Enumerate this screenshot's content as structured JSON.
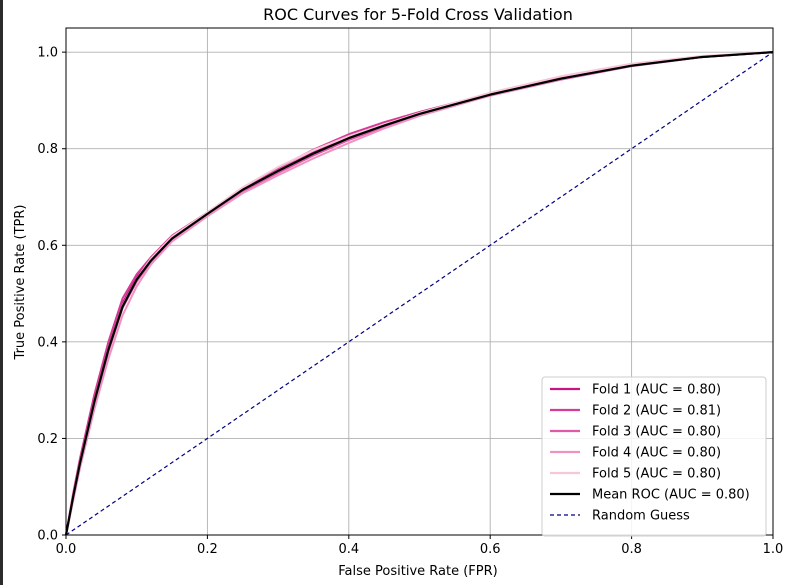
{
  "chart_data": {
    "type": "line",
    "title": "ROC Curves for 5-Fold Cross Validation",
    "xlabel": "False Positive Rate (FPR)",
    "ylabel": "True Positive Rate (TPR)",
    "xlim": [
      0.0,
      1.0
    ],
    "ylim": [
      0.0,
      1.05
    ],
    "grid": true,
    "legend_position": "bottom-right",
    "x_ticks": [
      "0.0",
      "0.2",
      "0.4",
      "0.6",
      "0.8",
      "1.0"
    ],
    "y_ticks": [
      "0.0",
      "0.2",
      "0.4",
      "0.6",
      "0.8",
      "1.0"
    ],
    "series": [
      {
        "name": "Fold 1 (AUC = 0.80)",
        "color": "#c71585",
        "x": [
          0.0,
          0.01,
          0.02,
          0.04,
          0.06,
          0.08,
          0.1,
          0.12,
          0.15,
          0.2,
          0.25,
          0.3,
          0.35,
          0.4,
          0.45,
          0.5,
          0.6,
          0.7,
          0.8,
          0.9,
          1.0
        ],
        "y": [
          0.0,
          0.08,
          0.15,
          0.28,
          0.39,
          0.48,
          0.535,
          0.57,
          0.615,
          0.665,
          0.715,
          0.755,
          0.792,
          0.823,
          0.848,
          0.872,
          0.912,
          0.945,
          0.972,
          0.99,
          1.0
        ]
      },
      {
        "name": "Fold 2 (AUC = 0.81)",
        "color": "#d63b96",
        "x": [
          0.0,
          0.01,
          0.02,
          0.04,
          0.06,
          0.08,
          0.1,
          0.12,
          0.15,
          0.2,
          0.25,
          0.3,
          0.35,
          0.4,
          0.45,
          0.5,
          0.6,
          0.7,
          0.8,
          0.9,
          1.0
        ],
        "y": [
          0.0,
          0.085,
          0.16,
          0.29,
          0.4,
          0.49,
          0.54,
          0.575,
          0.62,
          0.668,
          0.718,
          0.76,
          0.798,
          0.83,
          0.855,
          0.876,
          0.914,
          0.946,
          0.972,
          0.99,
          1.0
        ]
      },
      {
        "name": "Fold 3 (AUC = 0.80)",
        "color": "#e05aa8",
        "x": [
          0.0,
          0.01,
          0.02,
          0.04,
          0.06,
          0.08,
          0.1,
          0.12,
          0.15,
          0.2,
          0.25,
          0.3,
          0.35,
          0.4,
          0.45,
          0.5,
          0.6,
          0.7,
          0.8,
          0.9,
          1.0
        ],
        "y": [
          0.0,
          0.075,
          0.145,
          0.27,
          0.38,
          0.47,
          0.525,
          0.565,
          0.61,
          0.662,
          0.712,
          0.75,
          0.786,
          0.818,
          0.845,
          0.87,
          0.91,
          0.943,
          0.971,
          0.99,
          1.0
        ]
      },
      {
        "name": "Fold 4 (AUC = 0.80)",
        "color": "#ef92c2",
        "x": [
          0.0,
          0.01,
          0.02,
          0.04,
          0.06,
          0.08,
          0.1,
          0.12,
          0.15,
          0.2,
          0.25,
          0.3,
          0.35,
          0.4,
          0.45,
          0.5,
          0.6,
          0.7,
          0.8,
          0.9,
          1.0
        ],
        "y": [
          0.0,
          0.07,
          0.14,
          0.26,
          0.365,
          0.455,
          0.515,
          0.56,
          0.608,
          0.66,
          0.708,
          0.745,
          0.78,
          0.812,
          0.842,
          0.868,
          0.91,
          0.944,
          0.972,
          0.99,
          1.0
        ]
      },
      {
        "name": "Fold 5 (AUC = 0.80)",
        "color": "#f7c6d8",
        "x": [
          0.0,
          0.01,
          0.02,
          0.04,
          0.06,
          0.08,
          0.1,
          0.12,
          0.15,
          0.2,
          0.25,
          0.3,
          0.35,
          0.4,
          0.45,
          0.5,
          0.6,
          0.7,
          0.8,
          0.9,
          1.0
        ],
        "y": [
          0.0,
          0.078,
          0.15,
          0.275,
          0.385,
          0.475,
          0.53,
          0.572,
          0.618,
          0.668,
          0.72,
          0.762,
          0.797,
          0.826,
          0.85,
          0.874,
          0.916,
          0.95,
          0.976,
          0.992,
          1.0
        ]
      },
      {
        "name": "Mean ROC (AUC = 0.80)",
        "color": "#000000",
        "x": [
          0.0,
          0.01,
          0.02,
          0.04,
          0.06,
          0.08,
          0.1,
          0.12,
          0.15,
          0.2,
          0.25,
          0.3,
          0.35,
          0.4,
          0.45,
          0.5,
          0.6,
          0.7,
          0.8,
          0.9,
          1.0
        ],
        "y": [
          0.0,
          0.078,
          0.15,
          0.275,
          0.384,
          0.473,
          0.529,
          0.568,
          0.614,
          0.665,
          0.715,
          0.754,
          0.79,
          0.822,
          0.848,
          0.872,
          0.912,
          0.945,
          0.972,
          0.99,
          1.0
        ]
      },
      {
        "name": "Random Guess",
        "color": "#000080",
        "dashed": true,
        "x": [
          0.0,
          1.0
        ],
        "y": [
          0.0,
          1.0
        ]
      }
    ]
  }
}
